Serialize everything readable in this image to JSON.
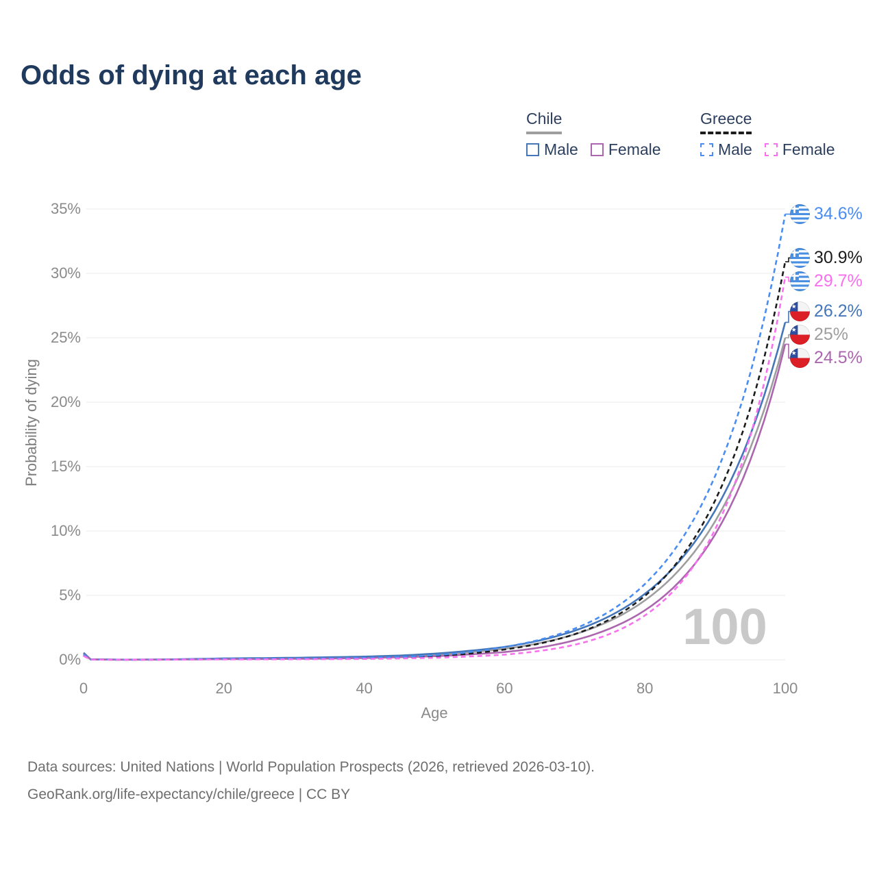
{
  "title": "Odds of dying at each age",
  "watermark_age": "100",
  "legend": {
    "groups": [
      {
        "country": "Chile",
        "line_style": "solid",
        "underline_color": "#9e9e9e",
        "items": [
          {
            "label": "Male",
            "color": "#4476b9"
          },
          {
            "label": "Female",
            "color": "#ab66ae"
          }
        ]
      },
      {
        "country": "Greece",
        "line_style": "dashed",
        "underline_color": "#1c1c1c",
        "items": [
          {
            "label": "Male",
            "color": "#4a8df2"
          },
          {
            "label": "Female",
            "color": "#f870ee"
          }
        ]
      }
    ]
  },
  "axes": {
    "x": {
      "label": "Age",
      "tick_labels": [
        "0",
        "20",
        "40",
        "60",
        "80",
        "100"
      ],
      "range": [
        0,
        100
      ]
    },
    "y": {
      "label": "Probability of dying",
      "tick_labels": [
        "0%",
        "5%",
        "10%",
        "15%",
        "20%",
        "25%",
        "30%",
        "35%"
      ],
      "range_pct": [
        0,
        35
      ],
      "grid": true
    }
  },
  "footer": {
    "line1": "Data sources: United Nations | World Population Prospects (2026, retrieved 2026-03-10).",
    "line2": "GeoRank.org/life-expectancy/chile/greece | CC BY"
  },
  "chart_data": {
    "type": "line",
    "title": "Odds of dying at each age",
    "xlabel": "Age",
    "ylabel": "Probability of dying",
    "xlim": [
      0,
      100
    ],
    "ylim_pct": [
      0,
      35
    ],
    "legend_position": "top-right",
    "x": [
      0,
      1,
      5,
      10,
      15,
      20,
      25,
      30,
      35,
      40,
      45,
      50,
      55,
      60,
      65,
      70,
      75,
      80,
      85,
      90,
      95,
      100
    ],
    "series": [
      {
        "name": "Chile Total",
        "country": "Chile",
        "sex": "total",
        "flag": "chile",
        "color": "#9e9e9e",
        "dash": false,
        "end_label": "25%",
        "values_pct": [
          0.5,
          0.035,
          0.012,
          0.015,
          0.045,
          0.08,
          0.1,
          0.12,
          0.15,
          0.2,
          0.28,
          0.4,
          0.58,
          0.85,
          1.3,
          1.98,
          3.02,
          4.61,
          7.04,
          10.74,
          16.39,
          25.0
        ]
      },
      {
        "name": "Chile Male",
        "country": "Chile",
        "sex": "male",
        "flag": "chile",
        "color": "#4476b9",
        "dash": false,
        "end_label": "26.2%",
        "values_pct": [
          0.55,
          0.04,
          0.015,
          0.02,
          0.06,
          0.11,
          0.13,
          0.16,
          0.2,
          0.25,
          0.33,
          0.48,
          0.7,
          1.0,
          1.5,
          2.26,
          3.4,
          5.12,
          7.7,
          11.58,
          17.42,
          26.2
        ]
      },
      {
        "name": "Chile Female",
        "country": "Chile",
        "sex": "female",
        "flag": "chile",
        "color": "#ab66ae",
        "dash": false,
        "end_label": "24.5%",
        "values_pct": [
          0.45,
          0.03,
          0.01,
          0.012,
          0.03,
          0.05,
          0.06,
          0.08,
          0.1,
          0.14,
          0.2,
          0.28,
          0.42,
          0.6,
          0.95,
          1.52,
          2.42,
          3.84,
          6.11,
          9.72,
          15.46,
          24.5
        ]
      },
      {
        "name": "Greece Total",
        "country": "Greece",
        "sex": "total",
        "flag": "greece",
        "color": "#1c1c1c",
        "dash": true,
        "end_label": "30.9%",
        "values_pct": [
          0.35,
          0.025,
          0.01,
          0.01,
          0.03,
          0.05,
          0.06,
          0.07,
          0.08,
          0.12,
          0.17,
          0.3,
          0.48,
          0.8,
          1.26,
          1.99,
          3.14,
          4.96,
          7.83,
          12.35,
          19.49,
          30.9
        ]
      },
      {
        "name": "Greece Male",
        "country": "Greece",
        "sex": "male",
        "flag": "greece",
        "color": "#4a8df2",
        "dash": true,
        "end_label": "34.6%",
        "values_pct": [
          0.4,
          0.03,
          0.01,
          0.012,
          0.04,
          0.07,
          0.08,
          0.09,
          0.11,
          0.15,
          0.22,
          0.35,
          0.6,
          1.0,
          1.56,
          2.42,
          3.77,
          5.88,
          9.15,
          14.25,
          22.2,
          34.6
        ]
      },
      {
        "name": "Greece Female",
        "country": "Greece",
        "sex": "female",
        "flag": "greece",
        "color": "#f870ee",
        "dash": true,
        "end_label": "29.7%",
        "values_pct": [
          0.3,
          0.02,
          0.008,
          0.008,
          0.02,
          0.03,
          0.035,
          0.04,
          0.05,
          0.07,
          0.11,
          0.16,
          0.26,
          0.4,
          0.69,
          1.17,
          2.01,
          3.44,
          5.9,
          10.1,
          17.31,
          29.7
        ]
      }
    ]
  }
}
